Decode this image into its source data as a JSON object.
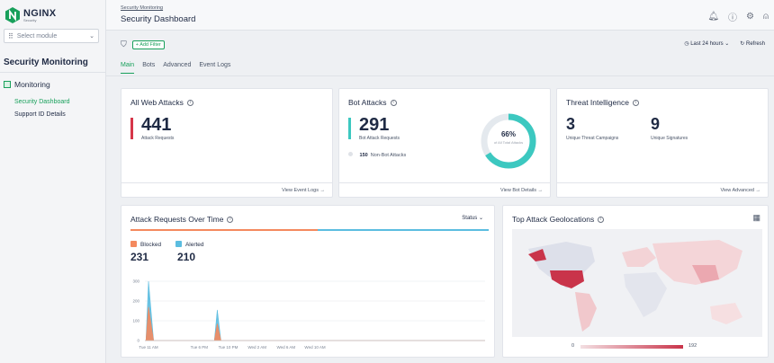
{
  "sidebar": {
    "logo_text": "NGINX",
    "logo_sub": "Security",
    "module_placeholder": "Select module",
    "section_title": "Security Monitoring",
    "group_label": "Monitoring",
    "items": [
      {
        "label": "Security Dashboard",
        "active": true
      },
      {
        "label": "Support ID Details",
        "active": false
      }
    ]
  },
  "header": {
    "breadcrumb": "Security Monitoring",
    "title": "Security Dashboard"
  },
  "toolbar": {
    "add_filter": "+ Add Filter",
    "time_range": "Last 24 hours",
    "refresh": "Refresh"
  },
  "tabs": [
    {
      "label": "Main",
      "active": true
    },
    {
      "label": "Bots",
      "active": false
    },
    {
      "label": "Advanced",
      "active": false
    },
    {
      "label": "Event Logs",
      "active": false
    }
  ],
  "web_attacks": {
    "title": "All Web Attacks",
    "value": "441",
    "label": "Attack Requests",
    "link": "View Event Logs →",
    "accent": "#d63649"
  },
  "bot_attacks": {
    "title": "Bot Attacks",
    "value": "291",
    "label": "Bot Attack Requests",
    "non_bot_value": "150",
    "non_bot_label": "Non-Bot Attacks",
    "donut_pct": "66%",
    "donut_fraction": 0.66,
    "donut_label": "of All Total Attacks",
    "link": "View Bot Details →",
    "accent": "#3cc8c0"
  },
  "threat_intel": {
    "title": "Threat Intelligence",
    "campaigns_value": "3",
    "campaigns_label": "Unique Threat Campaigns",
    "signatures_value": "9",
    "signatures_label": "Unique Signatures",
    "link": "View Advanced →"
  },
  "requests_chart": {
    "title": "Attack Requests Over Time",
    "status_label": "Status",
    "blocked_label": "Blocked",
    "blocked_value": "231",
    "alerted_label": "Alerted",
    "alerted_value": "210",
    "blocked_color": "#f4895e",
    "alerted_color": "#5bbde0"
  },
  "chart_data": {
    "type": "area",
    "x": [
      "Tue 11 AM",
      "Tue 6 PM",
      "Tue 10 PM",
      "Wed 2 AM",
      "Wed 6 AM",
      "Wed 10 AM"
    ],
    "yticks": [
      0,
      100,
      200,
      300
    ],
    "ylim": [
      0,
      300
    ],
    "series": [
      {
        "name": "Blocked",
        "points": [
          [
            0.15,
            0
          ],
          [
            0.5,
            170
          ],
          [
            1.2,
            0
          ],
          [
            9.6,
            0
          ],
          [
            10.0,
            85
          ],
          [
            10.5,
            0
          ]
        ]
      },
      {
        "name": "Alerted",
        "points": [
          [
            0.15,
            0
          ],
          [
            0.5,
            300
          ],
          [
            1.2,
            0
          ],
          [
            9.6,
            0
          ],
          [
            10.0,
            155
          ],
          [
            10.5,
            0
          ]
        ]
      }
    ],
    "x_hours_range": [
      0,
      47
    ]
  },
  "geo": {
    "title": "Top Attack Geolocations",
    "legend_min": "0",
    "legend_max": "192"
  }
}
